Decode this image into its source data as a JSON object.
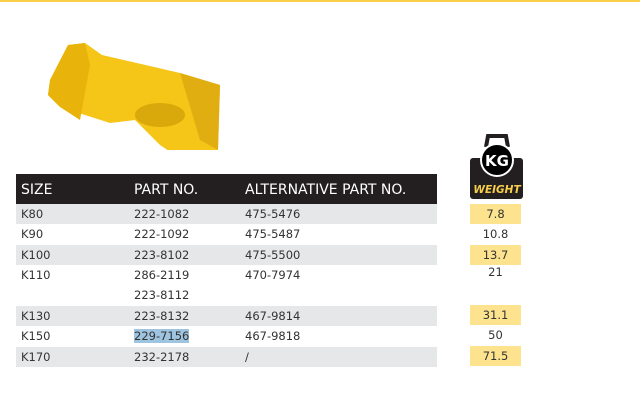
{
  "colors": {
    "accent": "#f9cf4a",
    "header_bg": "#231f20",
    "row_alt": "#e6e7e8",
    "weight_highlight": "#fde38e",
    "selection": "#9ec4e0"
  },
  "product_image": "bucket-tooth-adapter-yellow",
  "table": {
    "headers": [
      "SIZE",
      "PART NO.",
      "ALTERNATIVE PART NO."
    ],
    "rows": [
      {
        "size": "K80",
        "part": "222-1082",
        "alt": "475-5476"
      },
      {
        "size": "K90",
        "part": "222-1092",
        "alt": "475-5487"
      },
      {
        "size": "K100",
        "part": "223-8102",
        "alt": "475-5500"
      },
      {
        "size": "K110",
        "part": "286-2119",
        "part2": "223-8112",
        "alt": "470-7974"
      },
      {
        "size": "K130",
        "part": "223-8132",
        "alt": "467-9814"
      },
      {
        "size": "K150",
        "part": "229-7156",
        "alt": "467-9818"
      },
      {
        "size": "K170",
        "part": "232-2178",
        "alt": "/"
      }
    ]
  },
  "weight": {
    "icon_label": "KG",
    "title": "WEIGHT",
    "values": [
      "7.8",
      "10.8",
      "13.7",
      "21",
      "31.1",
      "50",
      "71.5"
    ]
  }
}
